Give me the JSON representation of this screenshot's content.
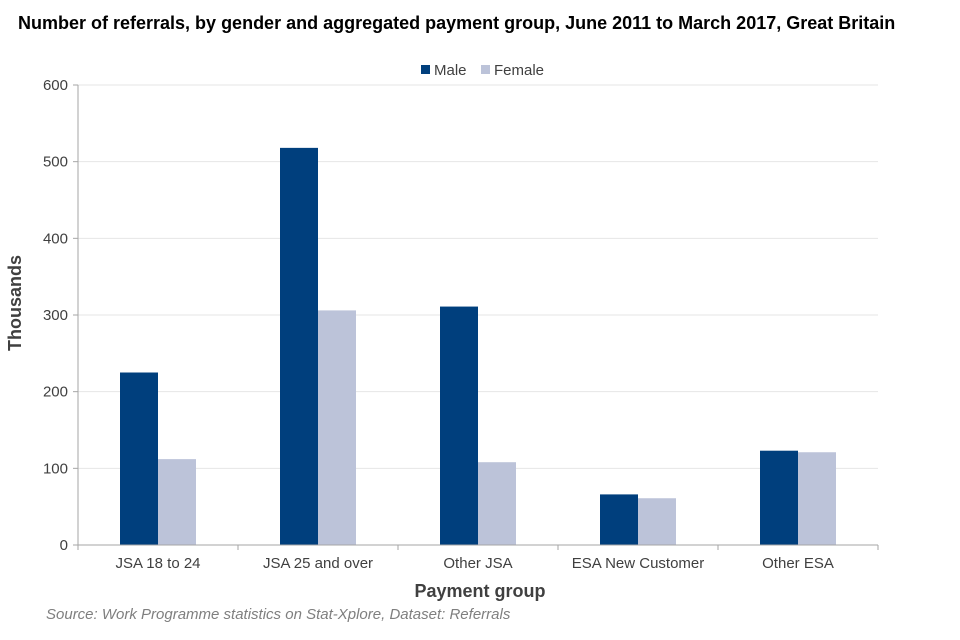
{
  "chart_data": {
    "type": "bar",
    "title": "Number of referrals, by gender and aggregated payment group, June 2011 to March 2017, Great Britain",
    "xlabel": "Payment group",
    "ylabel": "Thousands",
    "categories": [
      "JSA 18 to 24",
      "JSA 25 and over",
      "Other JSA",
      "ESA New Customer",
      "Other ESA"
    ],
    "series": [
      {
        "name": "Male",
        "color": "#003f7d",
        "values": [
          225,
          518,
          311,
          66,
          123
        ]
      },
      {
        "name": "Female",
        "color": "#bcc3d9",
        "values": [
          112,
          306,
          108,
          61,
          121
        ]
      }
    ],
    "ylim": [
      0,
      600
    ],
    "yticks": [
      0,
      100,
      200,
      300,
      400,
      500,
      600
    ],
    "grid": true,
    "legend": "top-center"
  },
  "source": "Source: Work Programme statistics on Stat-Xplore, Dataset: Referrals",
  "colors": {
    "grid": "#e6e6e6",
    "axis": "#a6a6a6",
    "text": "#404040"
  }
}
